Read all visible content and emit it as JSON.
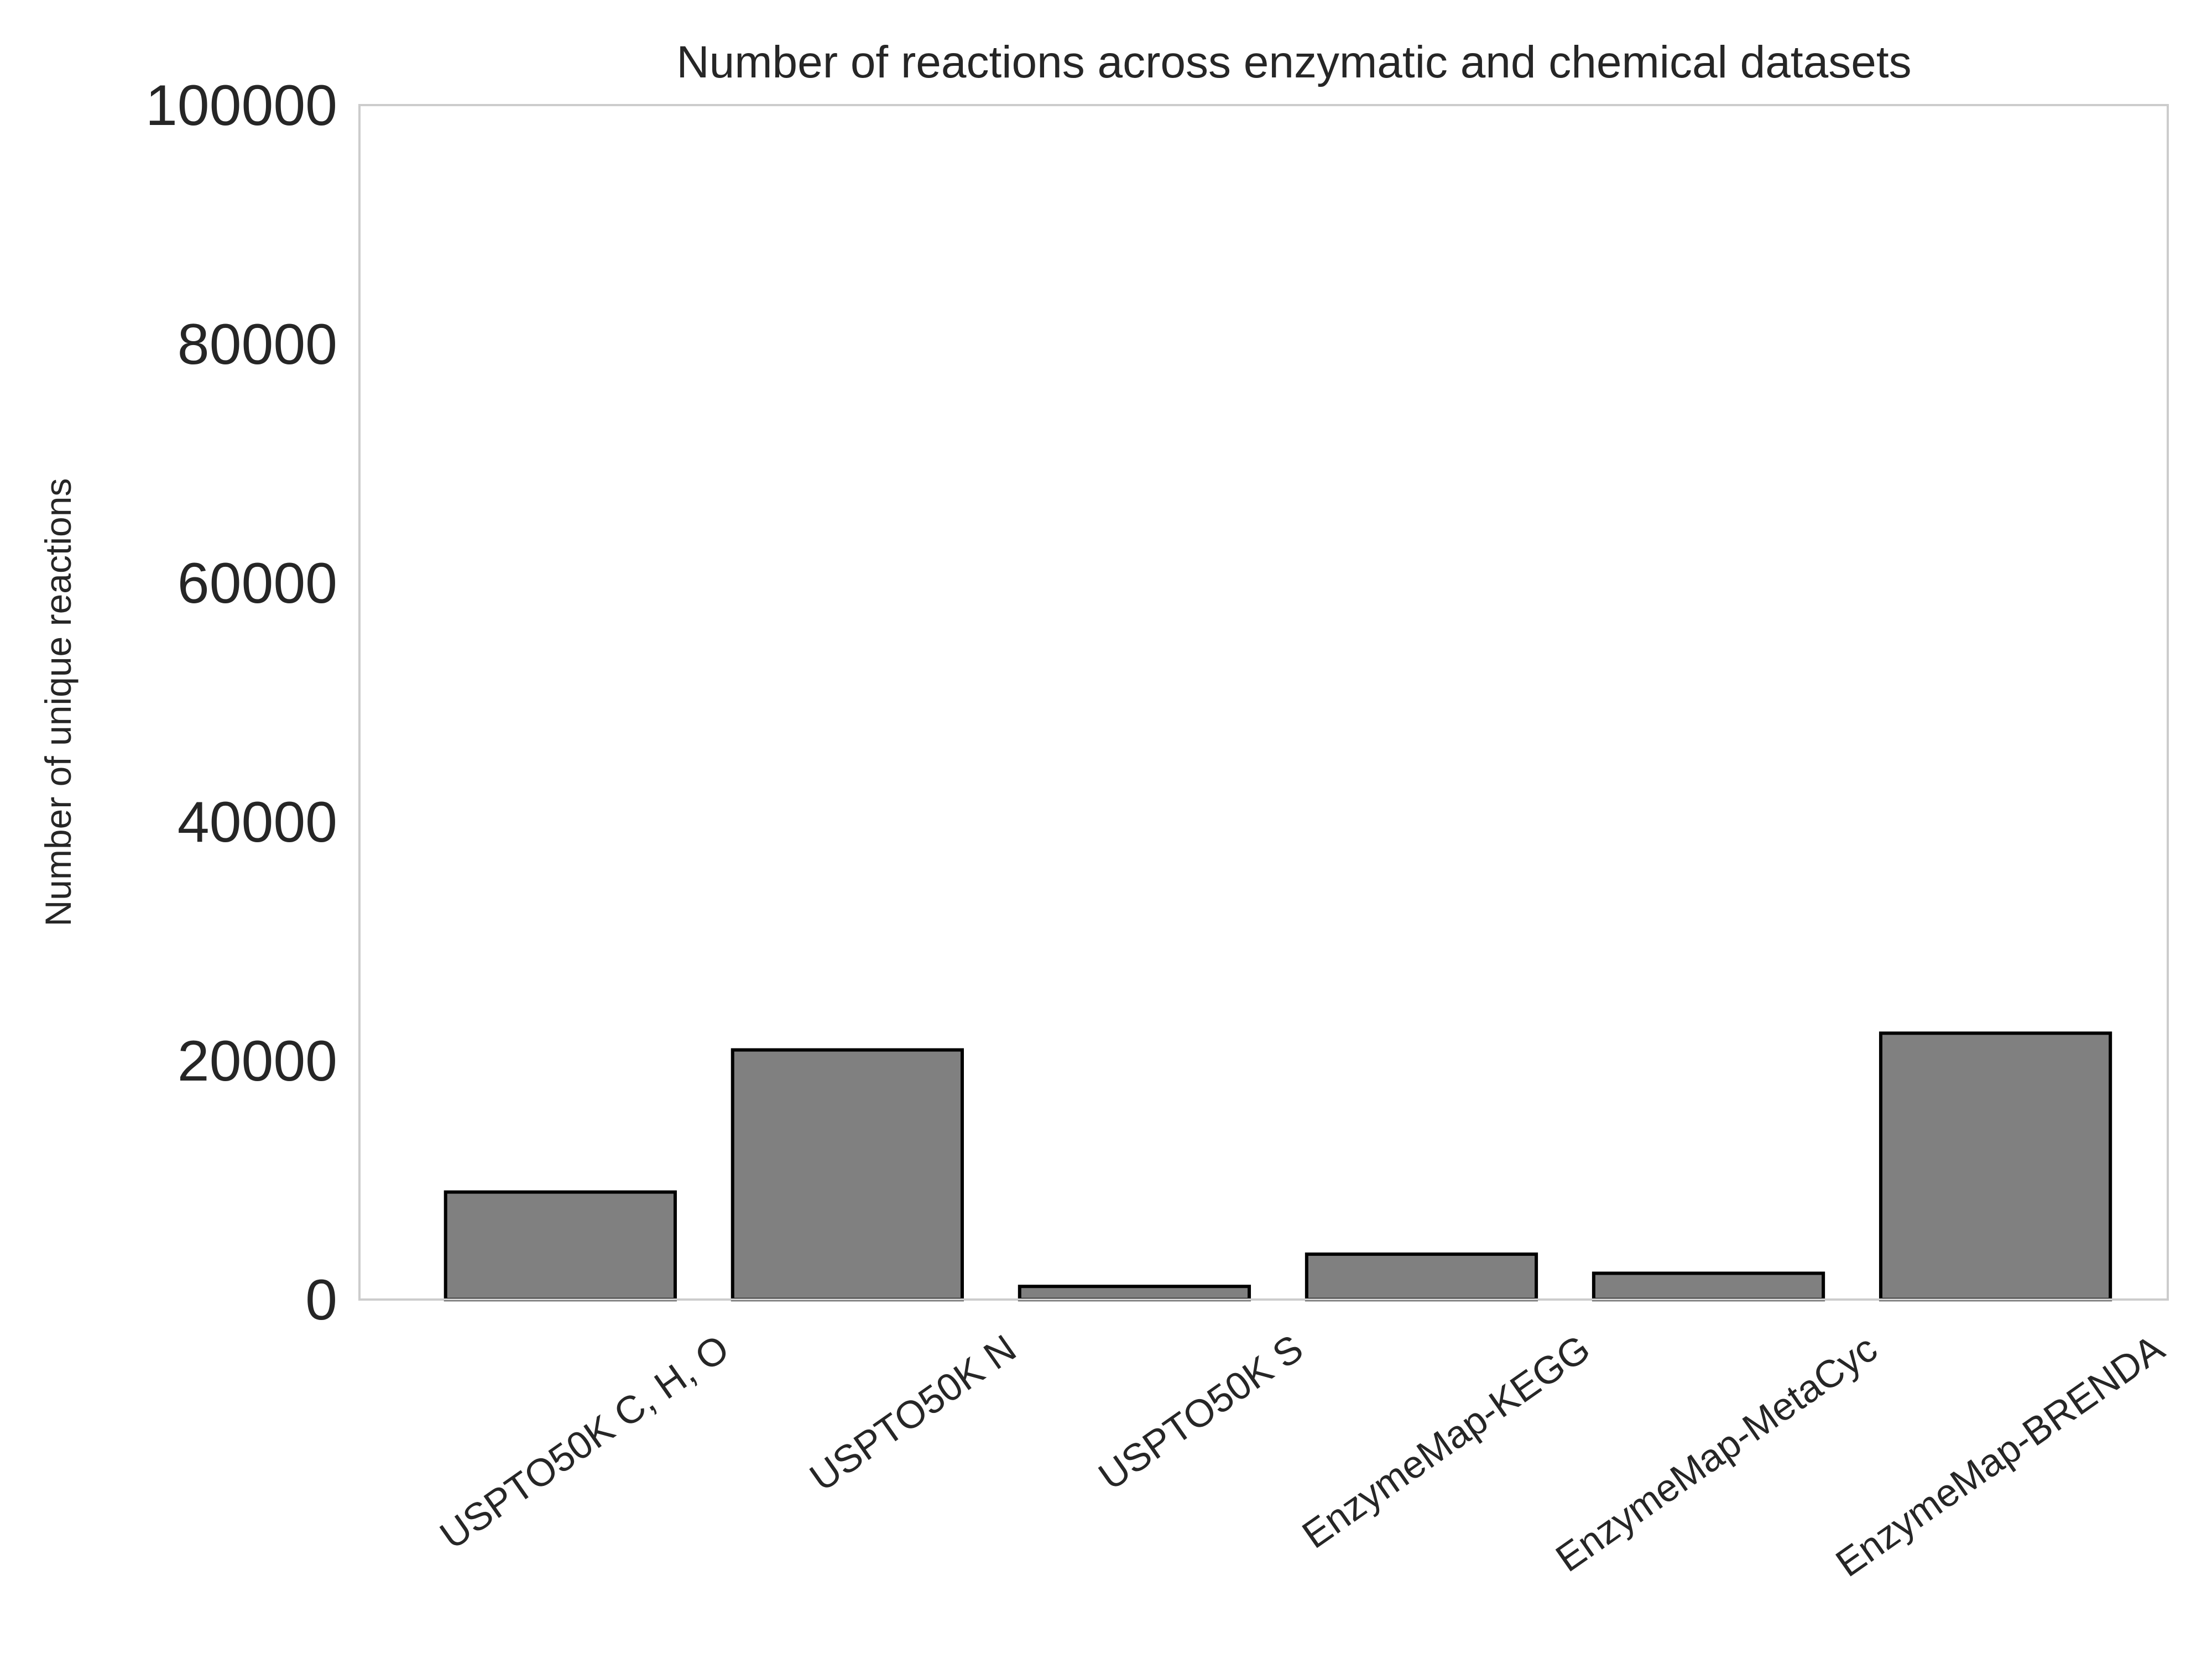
{
  "chart_data": {
    "type": "bar",
    "title": "Number of reactions across enzymatic and chemical datasets",
    "xlabel": "",
    "ylabel": "Number of unique reactions",
    "categories": [
      "USPTO50K C, H, O",
      "USPTO50K N",
      "USPTO50K S",
      "EnzymeMap-KEGG",
      "EnzymeMap-MetaCyc",
      "EnzymeMap-BRENDA"
    ],
    "values": [
      9000,
      20900,
      1100,
      3800,
      2200,
      22300
    ],
    "ylim": [
      0,
      100000
    ],
    "yticks": [
      "0",
      "20000",
      "40000",
      "60000",
      "80000",
      "100000"
    ],
    "grid": false,
    "bar_color": "#808080",
    "edge_color": "#000000"
  }
}
